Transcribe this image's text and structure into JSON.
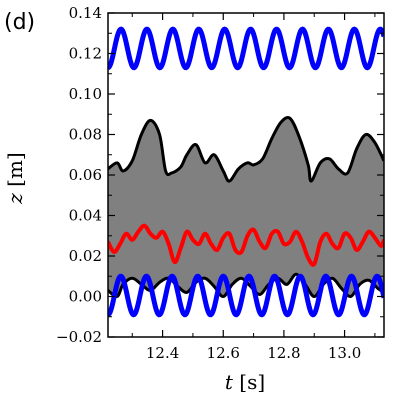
{
  "panel_label": "(d)",
  "chart_data": {
    "type": "line",
    "title": "",
    "xlabel_var": "t",
    "xlabel_unit": " [s]",
    "ylabel_var": "z",
    "ylabel_unit": " [m]",
    "xlim": [
      12.22,
      13.13
    ],
    "ylim": [
      -0.02,
      0.14
    ],
    "xticks": [
      12.4,
      12.6,
      12.8,
      13.0
    ],
    "xtick_labels": [
      "12.4",
      "12.6",
      "12.8",
      "13.0"
    ],
    "yticks": [
      -0.02,
      0.0,
      0.02,
      0.04,
      0.06,
      0.08,
      0.1,
      0.12,
      0.14
    ],
    "ytick_labels": [
      "−0.02",
      "0.00",
      "0.02",
      "0.04",
      "0.06",
      "0.08",
      "0.10",
      "0.12",
      "0.14"
    ],
    "grid": false,
    "legend": "none",
    "colors": {
      "band_fill": "#808080",
      "band_edge": "#000000",
      "top_oscillation": "#0000ff",
      "bottom_oscillation": "#0000ff",
      "middle_line": "#ff0000"
    },
    "series": [
      {
        "key": "band_upper",
        "x": [
          12.22,
          12.25,
          12.27,
          12.3,
          12.33,
          12.36,
          12.39,
          12.41,
          12.43,
          12.46,
          12.48,
          12.51,
          12.54,
          12.57,
          12.6,
          12.62,
          12.65,
          12.68,
          12.7,
          12.73,
          12.76,
          12.79,
          12.82,
          12.85,
          12.88,
          12.89,
          12.92,
          12.95,
          12.98,
          13.01,
          13.04,
          13.07,
          13.1,
          13.13
        ],
        "y": [
          0.063,
          0.066,
          0.062,
          0.067,
          0.08,
          0.087,
          0.08,
          0.062,
          0.061,
          0.064,
          0.07,
          0.075,
          0.066,
          0.07,
          0.062,
          0.057,
          0.063,
          0.066,
          0.065,
          0.068,
          0.078,
          0.086,
          0.088,
          0.079,
          0.065,
          0.057,
          0.066,
          0.068,
          0.063,
          0.061,
          0.073,
          0.08,
          0.076,
          0.067
        ]
      },
      {
        "key": "band_lower",
        "x": [
          12.22,
          12.25,
          12.27,
          12.3,
          12.33,
          12.36,
          12.39,
          12.42,
          12.45,
          12.48,
          12.51,
          12.54,
          12.57,
          12.6,
          12.63,
          12.66,
          12.69,
          12.72,
          12.75,
          12.78,
          12.81,
          12.84,
          12.87,
          12.9,
          12.93,
          12.96,
          12.99,
          13.02,
          13.05,
          13.08,
          13.11,
          13.13
        ],
        "y": [
          0.003,
          0.0,
          0.006,
          0.009,
          0.006,
          0.003,
          0.007,
          0.009,
          0.005,
          0.002,
          0.007,
          0.009,
          0.005,
          0.0,
          0.006,
          0.009,
          0.005,
          0.001,
          0.006,
          0.009,
          0.006,
          0.011,
          0.006,
          0.0,
          0.006,
          0.009,
          0.004,
          0.0,
          0.006,
          0.008,
          0.004,
          0.002
        ]
      },
      {
        "key": "middle_red",
        "x": [
          12.22,
          12.24,
          12.26,
          12.28,
          12.3,
          12.32,
          12.34,
          12.36,
          12.38,
          12.4,
          12.42,
          12.44,
          12.46,
          12.48,
          12.5,
          12.52,
          12.54,
          12.56,
          12.58,
          12.6,
          12.62,
          12.64,
          12.66,
          12.68,
          12.7,
          12.72,
          12.74,
          12.76,
          12.78,
          12.8,
          12.82,
          12.84,
          12.86,
          12.88,
          12.9,
          12.92,
          12.94,
          12.96,
          12.98,
          13.0,
          13.02,
          13.04,
          13.06,
          13.08,
          13.1,
          13.12,
          13.13
        ],
        "y": [
          0.027,
          0.022,
          0.026,
          0.031,
          0.028,
          0.032,
          0.035,
          0.031,
          0.029,
          0.032,
          0.026,
          0.017,
          0.024,
          0.032,
          0.028,
          0.026,
          0.031,
          0.026,
          0.023,
          0.029,
          0.031,
          0.023,
          0.022,
          0.03,
          0.033,
          0.027,
          0.024,
          0.031,
          0.032,
          0.026,
          0.027,
          0.032,
          0.027,
          0.019,
          0.016,
          0.027,
          0.031,
          0.026,
          0.024,
          0.031,
          0.029,
          0.023,
          0.027,
          0.032,
          0.029,
          0.025,
          0.028
        ]
      },
      {
        "key": "top_blue",
        "oscillation": true,
        "center": 0.1225,
        "amplitude": 0.0095,
        "period": 0.0855,
        "phase": 0.0
      },
      {
        "key": "bottom_blue",
        "oscillation": true,
        "center": 0.0005,
        "amplitude": 0.0095,
        "period": 0.0845,
        "phase": 0.0
      }
    ]
  }
}
